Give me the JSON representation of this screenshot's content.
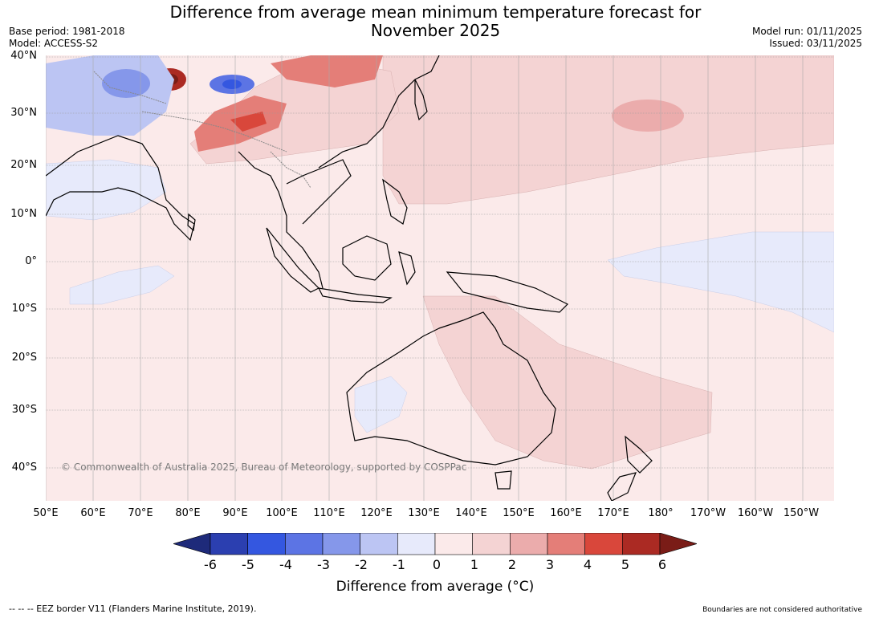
{
  "header": {
    "title_line1": "Difference from average mean minimum temperature forecast for",
    "title_line2": "November 2025",
    "base_period": "Base period: 1981-2018",
    "model": "Model: ACCESS-S2",
    "model_run": "Model run: 01/11/2025",
    "issued": "Issued: 03/11/2025"
  },
  "map": {
    "lat_labels": [
      "40°N",
      "30°N",
      "20°N",
      "10°N",
      "0°",
      "10°S",
      "20°S",
      "30°S",
      "40°S"
    ],
    "lon_labels": [
      "50°E",
      "60°E",
      "70°E",
      "80°E",
      "90°E",
      "100°E",
      "110°E",
      "120°E",
      "130°E",
      "140°E",
      "150°E",
      "160°E",
      "170°E",
      "180°",
      "170°W",
      "160°W",
      "150°W"
    ],
    "copyright": "© Commonwealth of Australia 2025, Bureau of Meteorology, supported by COSPPac",
    "background_anomaly_color": "#fbeaea"
  },
  "colorbar": {
    "label": "Difference from average (°C)",
    "ticks": [
      "-6",
      "-5",
      "-4",
      "-3",
      "-2",
      "-1",
      "0",
      "1",
      "2",
      "3",
      "4",
      "5",
      "6"
    ],
    "colors": [
      "#1e2a7a",
      "#2b3fb0",
      "#3457e0",
      "#5c74e4",
      "#8597ea",
      "#bcc5f3",
      "#e7eafb",
      "#fbeaea",
      "#f4d3d3",
      "#ebacac",
      "#e47e78",
      "#d9473b",
      "#ab2a23",
      "#7a1c17"
    ]
  },
  "footer": {
    "eez_note": "-- -- -- EEZ border V11 (Flanders Marine Institute, 2019).",
    "disclaimer": "Boundaries are not considered authoritative"
  }
}
